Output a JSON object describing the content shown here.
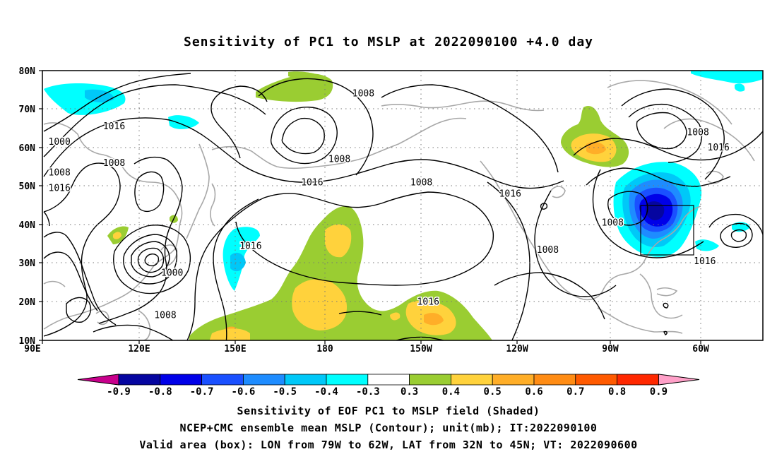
{
  "title": "Sensitivity of PC1 to MSLP at 2022090100 +4.0 day",
  "map": {
    "lon_labels": [
      "90E",
      "120E",
      "150E",
      "180",
      "150W",
      "120W",
      "90W",
      "60W"
    ],
    "lat_labels": [
      "80N",
      "70N",
      "60N",
      "50N",
      "40N",
      "30N",
      "20N",
      "10N"
    ],
    "contour_labels": [
      {
        "text": "1008",
        "lon": -176,
        "lat": 74
      },
      {
        "text": "1016",
        "lon": 111,
        "lat": 65.5
      },
      {
        "text": "1000",
        "lon": 95,
        "lat": 61.5
      },
      {
        "text": "1008",
        "lon": 111,
        "lat": 56
      },
      {
        "text": "1008",
        "lon": 95,
        "lat": 53.5
      },
      {
        "text": "1016",
        "lon": 95,
        "lat": 49.5
      },
      {
        "text": "1008",
        "lon": 177,
        "lat": 57
      },
      {
        "text": "1016",
        "lon": 169,
        "lat": 51
      },
      {
        "text": "1008",
        "lon": -159,
        "lat": 51
      },
      {
        "text": "1016",
        "lon": -133,
        "lat": 48
      },
      {
        "text": "1008",
        "lon": -103,
        "lat": 40.5
      },
      {
        "text": "1008",
        "lon": -78,
        "lat": 64
      },
      {
        "text": "1016",
        "lon": -72,
        "lat": 60
      },
      {
        "text": "1016",
        "lon": -56,
        "lat": 43
      },
      {
        "text": "1016",
        "lon": -76,
        "lat": 30.5
      },
      {
        "text": "1008",
        "lon": -122,
        "lat": 33.5
      },
      {
        "text": "1016",
        "lon": 151,
        "lat": 34.5
      },
      {
        "text": "1000",
        "lon": 128,
        "lat": 27.5
      },
      {
        "text": "1008",
        "lon": 126,
        "lat": 16.5
      },
      {
        "text": "1016",
        "lon": -157,
        "lat": 20
      }
    ],
    "valid_box": {
      "lon_w": -79,
      "lon_e": -62,
      "lat_s": 32,
      "lat_n": 45
    }
  },
  "colorbar": {
    "labels": [
      "-0.9",
      "-0.8",
      "-0.7",
      "-0.6",
      "-0.5",
      "-0.4",
      "-0.3",
      "0.3",
      "0.4",
      "0.5",
      "0.6",
      "0.7",
      "0.8",
      "0.9"
    ],
    "colors": [
      "#0505a0",
      "#0000e8",
      "#1a50ff",
      "#1e8cff",
      "#00c8f8",
      "#00ffff",
      "#ffffff",
      "#9acd32",
      "#ffd23c",
      "#ffae28",
      "#ff8c14",
      "#ff5a00",
      "#ff2800"
    ],
    "low_end_color": "#c8008c",
    "high_end_color": "#ffa0c8"
  },
  "footer": {
    "line1": "Sensitivity of EOF PC1 to MSLP field (Shaded)",
    "line2": "NCEP+CMC ensemble mean MSLP (Contour); unit(mb); IT:2022090100",
    "line3": "Valid area (box): LON from 79W to 62W, LAT from 32N to 45N; VT: 2022090600"
  }
}
